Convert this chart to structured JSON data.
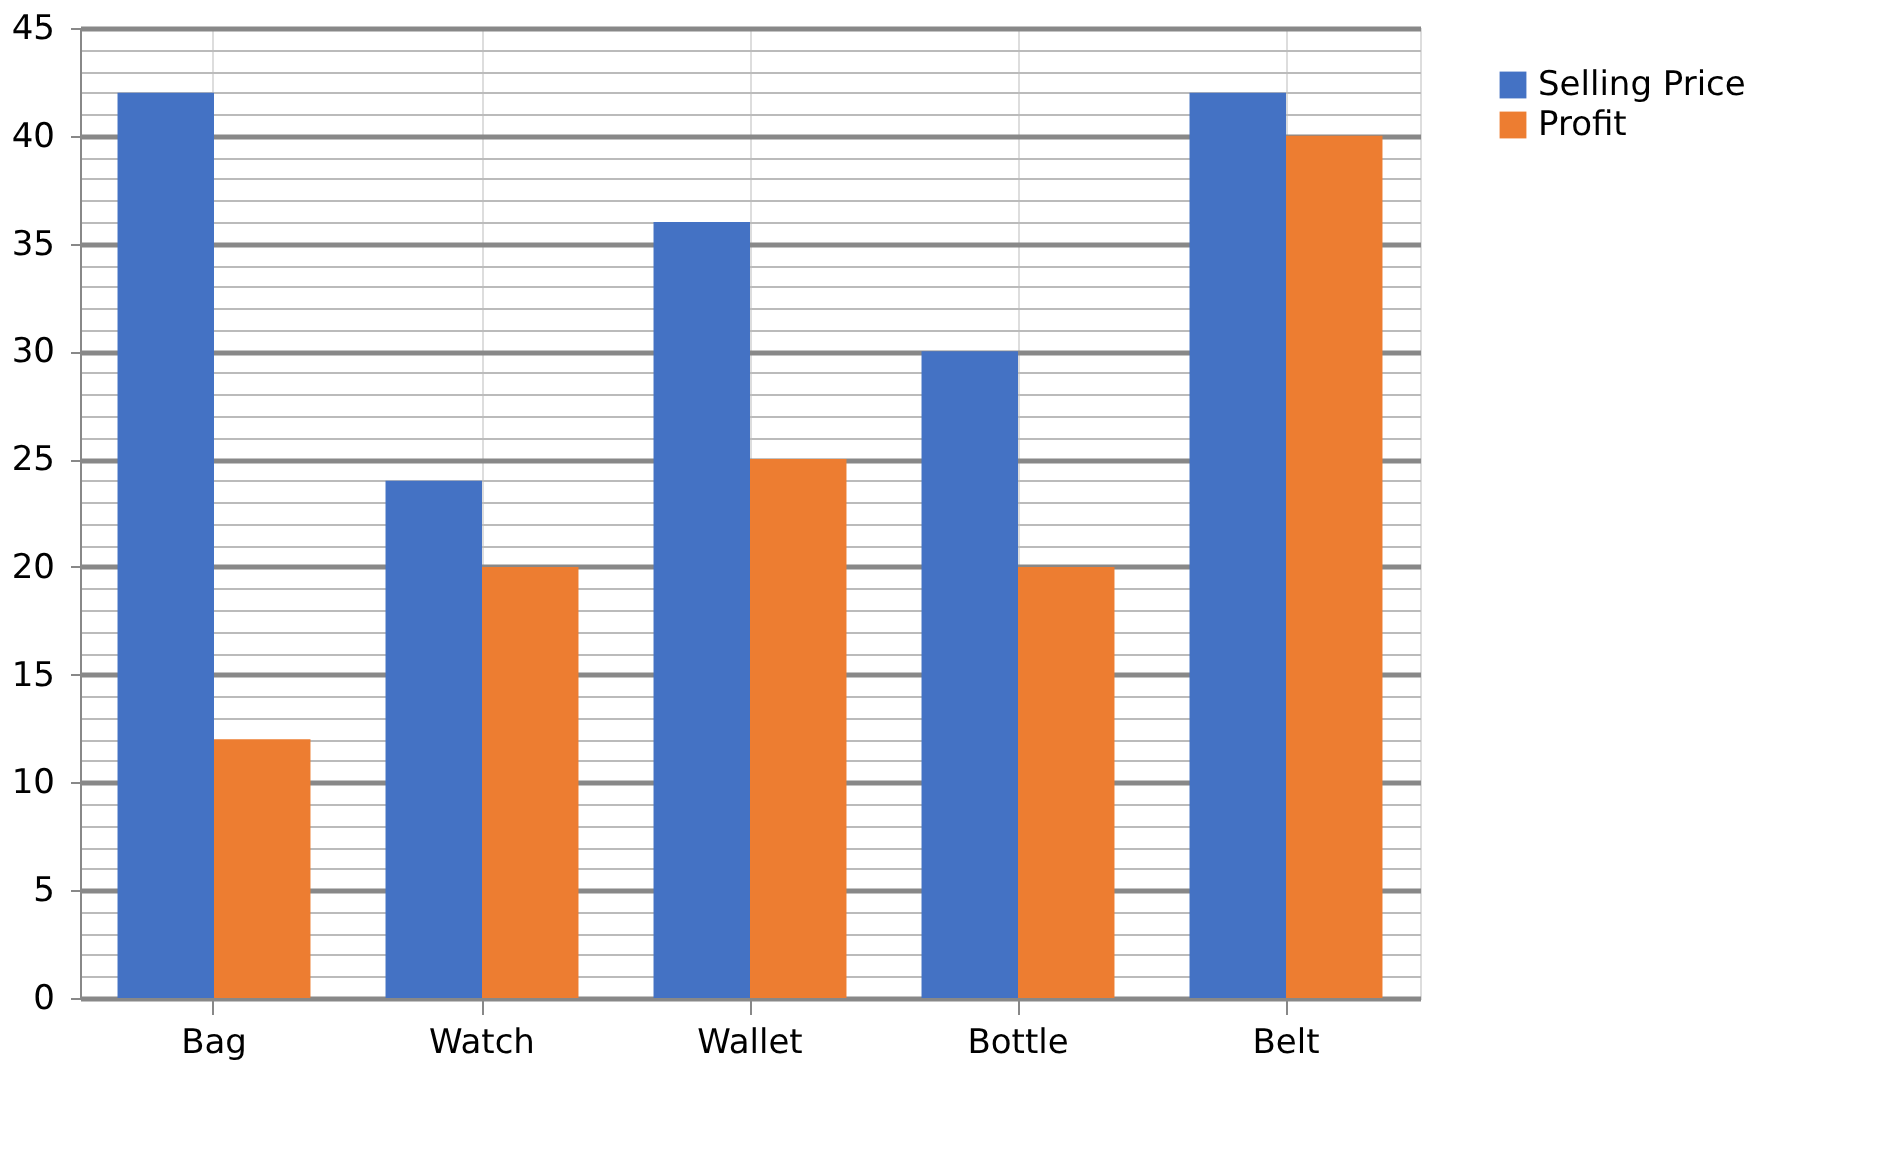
{
  "chart_data": {
    "type": "bar",
    "categories": [
      "Bag",
      "Watch",
      "Wallet",
      "Bottle",
      "Belt"
    ],
    "series": [
      {
        "name": "Selling Price",
        "color": "#4472c4",
        "values": [
          42,
          24,
          36,
          30,
          42
        ]
      },
      {
        "name": "Profit",
        "color": "#ed7d31",
        "values": [
          12,
          20,
          25,
          20,
          40
        ]
      }
    ],
    "ylim": [
      0,
      45
    ],
    "yticks": [
      0,
      {
        "value": 1,
        "label": null
      },
      {
        "value": 2,
        "label": null
      },
      {
        "value": 3,
        "label": null
      },
      {
        "value": 4,
        "label": null
      },
      5,
      {
        "value": 6,
        "label": null
      },
      {
        "value": 7,
        "label": null
      },
      {
        "value": 8,
        "label": null
      },
      {
        "value": 9,
        "label": null
      },
      10,
      {
        "value": 11,
        "label": null
      },
      {
        "value": 12,
        "label": null
      },
      {
        "value": 13,
        "label": null
      },
      {
        "value": 14,
        "label": null
      },
      15,
      {
        "value": 16,
        "label": null
      },
      {
        "value": 17,
        "label": null
      },
      {
        "value": 18,
        "label": null
      },
      {
        "value": 19,
        "label": null
      },
      20,
      {
        "value": 21,
        "label": null
      },
      {
        "value": 22,
        "label": null
      },
      {
        "value": 23,
        "label": null
      },
      {
        "value": 24,
        "label": null
      },
      25,
      {
        "value": 26,
        "label": null
      },
      {
        "value": 27,
        "label": null
      },
      {
        "value": 28,
        "label": null
      },
      {
        "value": 29,
        "label": null
      },
      30,
      {
        "value": 31,
        "label": null
      },
      {
        "value": 32,
        "label": null
      },
      {
        "value": 33,
        "label": null
      },
      {
        "value": 34,
        "label": null
      },
      35,
      {
        "value": 36,
        "label": null
      },
      {
        "value": 37,
        "label": null
      },
      {
        "value": 38,
        "label": null
      },
      {
        "value": 39,
        "label": null
      },
      40,
      {
        "value": 41,
        "label": null
      },
      {
        "value": 42,
        "label": null
      },
      {
        "value": 43,
        "label": null
      },
      {
        "value": 44,
        "label": null
      },
      45
    ],
    "grid": true,
    "legend": "right"
  }
}
